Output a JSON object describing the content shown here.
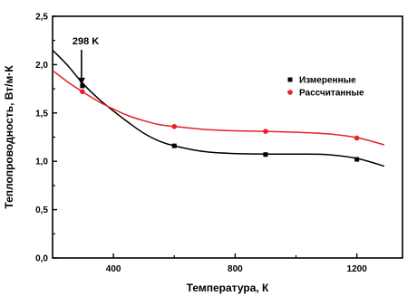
{
  "chart_data": {
    "type": "line",
    "xlabel": "Температура, К",
    "ylabel": "Теплопроводность, Вт/м·К",
    "xlim": [
      200,
      1350
    ],
    "ylim": [
      0.0,
      2.5
    ],
    "x_ticks": [
      "400",
      "800",
      "1200"
    ],
    "y_ticks": [
      "0,0",
      "0,5",
      "1,0",
      "1,5",
      "2,0",
      "2,5"
    ],
    "grid": false,
    "legend_position": "right",
    "series": [
      {
        "name": "Измеренные",
        "color": "#000000",
        "marker": "square",
        "points": [
          {
            "x": 298,
            "y": 1.78
          },
          {
            "x": 600,
            "y": 1.16
          },
          {
            "x": 900,
            "y": 1.07
          },
          {
            "x": 1200,
            "y": 1.02
          }
        ],
        "curve": [
          {
            "x": 200,
            "y": 2.15
          },
          {
            "x": 250,
            "y": 1.99
          },
          {
            "x": 298,
            "y": 1.81
          },
          {
            "x": 350,
            "y": 1.65
          },
          {
            "x": 400,
            "y": 1.52
          },
          {
            "x": 450,
            "y": 1.4
          },
          {
            "x": 500,
            "y": 1.29
          },
          {
            "x": 550,
            "y": 1.21
          },
          {
            "x": 600,
            "y": 1.16
          },
          {
            "x": 700,
            "y": 1.1
          },
          {
            "x": 800,
            "y": 1.08
          },
          {
            "x": 900,
            "y": 1.075
          },
          {
            "x": 1000,
            "y": 1.075
          },
          {
            "x": 1100,
            "y": 1.07
          },
          {
            "x": 1200,
            "y": 1.03
          },
          {
            "x": 1290,
            "y": 0.95
          }
        ]
      },
      {
        "name": "Рассчитанные",
        "color": "#e8202a",
        "marker": "circle",
        "points": [
          {
            "x": 298,
            "y": 1.72
          },
          {
            "x": 600,
            "y": 1.36
          },
          {
            "x": 900,
            "y": 1.31
          },
          {
            "x": 1200,
            "y": 1.24
          }
        ],
        "curve": [
          {
            "x": 200,
            "y": 1.94
          },
          {
            "x": 250,
            "y": 1.82
          },
          {
            "x": 298,
            "y": 1.72
          },
          {
            "x": 350,
            "y": 1.62
          },
          {
            "x": 400,
            "y": 1.54
          },
          {
            "x": 450,
            "y": 1.47
          },
          {
            "x": 500,
            "y": 1.42
          },
          {
            "x": 550,
            "y": 1.38
          },
          {
            "x": 600,
            "y": 1.36
          },
          {
            "x": 700,
            "y": 1.33
          },
          {
            "x": 800,
            "y": 1.315
          },
          {
            "x": 900,
            "y": 1.31
          },
          {
            "x": 1000,
            "y": 1.3
          },
          {
            "x": 1100,
            "y": 1.285
          },
          {
            "x": 1200,
            "y": 1.245
          },
          {
            "x": 1290,
            "y": 1.17
          }
        ]
      }
    ],
    "annotation": {
      "text": "298 K",
      "x": 298,
      "y": 1.78
    }
  }
}
